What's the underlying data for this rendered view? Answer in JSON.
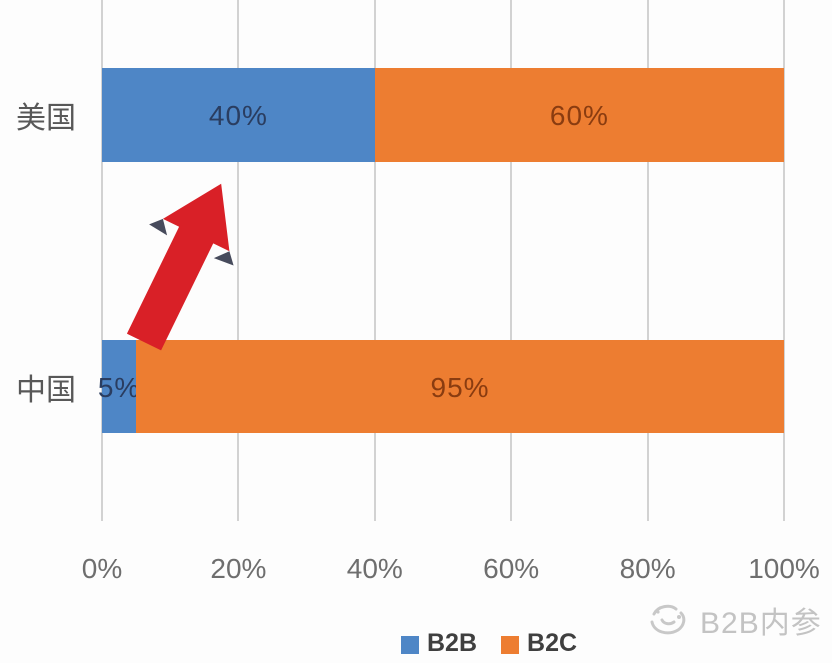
{
  "chart_data": {
    "type": "bar",
    "orientation": "horizontal-stacked",
    "title": "",
    "xlabel": "",
    "ylabel": "",
    "categories": [
      "美国",
      "中国"
    ],
    "series": [
      {
        "name": "B2B",
        "color": "#4e86c6",
        "label_color": "#2a3d60",
        "values": [
          40,
          5
        ],
        "labels": [
          "40%",
          "5%"
        ]
      },
      {
        "name": "B2C",
        "color": "#ed7d31",
        "label_color": "#8a3c10",
        "values": [
          60,
          95
        ],
        "labels": [
          "60%",
          "95%"
        ]
      }
    ],
    "x_ticks": [
      "0%",
      "20%",
      "40%",
      "60%",
      "80%",
      "100%"
    ],
    "x_tick_values": [
      0,
      20,
      40,
      60,
      80,
      100
    ],
    "xlim": [
      0,
      100
    ],
    "grid": true,
    "gridline_color": "#d2d2d2",
    "legend_position": "bottom",
    "annotation": {
      "shape": "red-block-arrow-up-right",
      "color": "#d92027",
      "accent_color": "#474b5c"
    }
  },
  "watermark": {
    "text": "B2B内参"
  }
}
